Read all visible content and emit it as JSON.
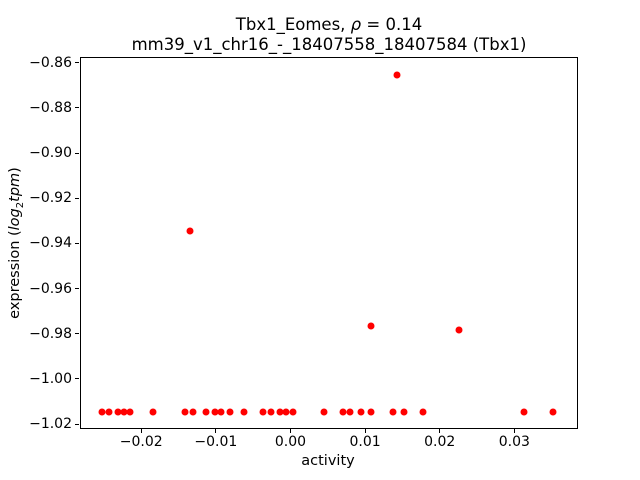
{
  "figure": {
    "title_line1": {
      "prefix": "Tbx1_Eomes, ",
      "rho": "ρ",
      "suffix": " = 0.14"
    },
    "title_line2": "mm39_v1_chr16_-_18407558_18407584 (Tbx1)",
    "xlabel": "activity",
    "ylabel": {
      "prefix": "expression (",
      "italic1": "log",
      "sub": "2",
      "italic2": "tpm",
      "suffix": ")"
    }
  },
  "chart_data": {
    "type": "scatter",
    "title": "Tbx1_Eomes, ρ = 0.14\nmm39_v1_chr16_-_18407558_18407584 (Tbx1)",
    "xlabel": "activity",
    "ylabel": "expression (log2 tpm)",
    "legend": "none",
    "grid": false,
    "marker_color": "#ff0000",
    "marker_diameter_px": 7,
    "xlim": [
      -0.0282,
      0.0384
    ],
    "ylim": [
      -1.0217,
      -0.8575
    ],
    "x_ticks": [
      {
        "value": -0.02,
        "label": "−0.02"
      },
      {
        "value": -0.01,
        "label": "−0.01"
      },
      {
        "value": 0.0,
        "label": "0.00"
      },
      {
        "value": 0.01,
        "label": "0.01"
      },
      {
        "value": 0.02,
        "label": "0.02"
      },
      {
        "value": 0.03,
        "label": "0.03"
      }
    ],
    "y_ticks": [
      {
        "value": -0.86,
        "label": "−0.86"
      },
      {
        "value": -0.88,
        "label": "−0.88"
      },
      {
        "value": -0.9,
        "label": "−0.90"
      },
      {
        "value": -0.92,
        "label": "−0.92"
      },
      {
        "value": -0.94,
        "label": "−0.94"
      },
      {
        "value": -0.96,
        "label": "−0.96"
      },
      {
        "value": -0.98,
        "label": "−0.98"
      },
      {
        "value": -1.0,
        "label": "−1.00"
      },
      {
        "value": -1.02,
        "label": "−1.02"
      }
    ],
    "points": [
      [
        -0.0254,
        -1.014
      ],
      [
        -0.0244,
        -1.014
      ],
      [
        -0.0233,
        -1.014
      ],
      [
        -0.0224,
        -1.014
      ],
      [
        -0.0216,
        -1.014
      ],
      [
        -0.0186,
        -1.014
      ],
      [
        -0.0143,
        -1.014
      ],
      [
        -0.0132,
        -1.014
      ],
      [
        -0.0114,
        -1.014
      ],
      [
        -0.0103,
        -1.014
      ],
      [
        -0.0094,
        -1.014
      ],
      [
        -0.0083,
        -1.014
      ],
      [
        -0.0063,
        -1.014
      ],
      [
        -0.0038,
        -1.014
      ],
      [
        -0.0027,
        -1.014
      ],
      [
        -0.0016,
        -1.014
      ],
      [
        -0.0007,
        -1.014
      ],
      [
        0.0002,
        -1.014
      ],
      [
        0.0044,
        -1.014
      ],
      [
        0.0069,
        -1.014
      ],
      [
        0.0079,
        -1.014
      ],
      [
        0.0093,
        -1.014
      ],
      [
        0.0107,
        -1.014
      ],
      [
        0.0136,
        -1.014
      ],
      [
        0.0151,
        -1.014
      ],
      [
        0.0176,
        -1.014
      ],
      [
        0.0312,
        -1.014
      ],
      [
        0.035,
        -1.014
      ],
      [
        -0.0136,
        -0.934
      ],
      [
        0.0107,
        -0.976
      ],
      [
        0.0141,
        -0.865
      ],
      [
        0.0224,
        -0.978
      ]
    ]
  }
}
